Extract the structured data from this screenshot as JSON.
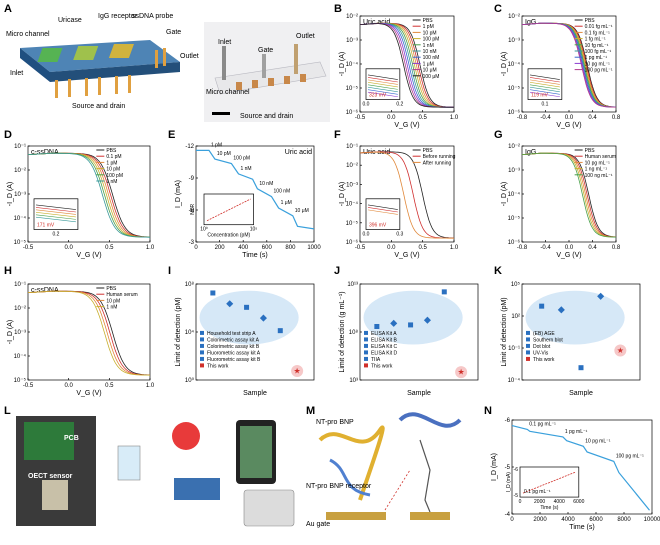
{
  "panel_letters": [
    "A",
    "B",
    "C",
    "D",
    "E",
    "F",
    "G",
    "H",
    "I",
    "J",
    "K",
    "L",
    "M",
    "N"
  ],
  "panelA": {
    "left": {
      "labels": [
        "Micro channel",
        "Uricase",
        "IgG receptor",
        "ssDNA probe",
        "Gate",
        "Inlet",
        "Outlet",
        "Source and drain"
      ]
    },
    "right": {
      "labels": [
        "Inlet",
        "Gate",
        "Outlet",
        "Micro channel",
        "Source and drain"
      ]
    }
  },
  "colors": {
    "accent": "#3aa0dc",
    "red": "#d0302a",
    "ellipse": "#d6e8f7",
    "series": [
      "#222222",
      "#d03030",
      "#e0883a",
      "#c8b030",
      "#49a04a",
      "#3a9a9a",
      "#3a6ad0",
      "#8a3ad0",
      "#b03a8a"
    ]
  },
  "chart_data": [
    {
      "id": "B",
      "type": "line",
      "title": "Uric acid",
      "xlabel": "V_G (V)",
      "ylabel": "-I_D (A)",
      "xlim": [
        -0.8,
        1.0
      ],
      "ylim_exp": [
        -6,
        -2
      ],
      "xticks": [
        "-0.5",
        "0.0",
        "0.5",
        "1.0"
      ],
      "yticks": [
        "10⁻²",
        "10⁻³",
        "10⁻⁴",
        "10⁻⁵",
        "10⁻⁶"
      ],
      "legend": [
        "PBS",
        "1 pM",
        "10 pM",
        "100 pM",
        "1 nM",
        "10 nM",
        "100 nM",
        "1 μM",
        "10 μM",
        "100 μM"
      ],
      "inset": {
        "annotation": "323 mV",
        "xticks": [
          "0.0",
          "0.2"
        ]
      },
      "series_count": 10,
      "vth_start": 0.35,
      "vth_step": -0.035
    },
    {
      "id": "C",
      "type": "line",
      "title": "IgG",
      "xlabel": "V_G (V)",
      "ylabel": "-I_D (A)",
      "xlim": [
        -0.8,
        1.0
      ],
      "ylim_exp": [
        -6,
        -2
      ],
      "xticks": [
        "-0.8",
        "-0.4",
        "0.0",
        "0.4",
        "0.8"
      ],
      "yticks": [
        "10⁻²",
        "10⁻³",
        "10⁻⁴",
        "10⁻⁵",
        "10⁻⁶"
      ],
      "legend": [
        "PBS",
        "0.01 fg mL⁻¹",
        "0.1 fg mL⁻¹",
        "1 fg mL⁻¹",
        "10 fg mL⁻¹",
        "100 fg mL⁻¹",
        "1 pg mL⁻¹",
        "10 pg mL⁻¹",
        "100 pg mL⁻¹"
      ],
      "inset": {
        "annotation": "119 mV",
        "xticks": [
          "0.1"
        ]
      },
      "series_count": 9,
      "vth_start": 0.45,
      "vth_step": -0.014
    },
    {
      "id": "D",
      "type": "line",
      "title": "c-ssDNA",
      "xlabel": "V_G (V)",
      "ylabel": "-I_D (A)",
      "xlim": [
        -0.8,
        1.0
      ],
      "ylim_exp": [
        -5,
        -1
      ],
      "xticks": [
        "-0.5",
        "0.0",
        "0.5",
        "1.0"
      ],
      "yticks": [
        "10⁻¹",
        "10⁻²",
        "10⁻³",
        "10⁻⁴",
        "10⁻⁵"
      ],
      "legend": [
        "PBS",
        "0.1 pM",
        "1 pM",
        "10 pM",
        "100 pM",
        "1 nM"
      ],
      "inset": {
        "annotation": "171 mV",
        "xticks": [
          "0.2"
        ]
      },
      "series_count": 6,
      "vth_start": 0.45,
      "vth_step": -0.03
    },
    {
      "id": "E",
      "type": "line",
      "title": "Uric acid",
      "xlabel": "Time (s)",
      "ylabel": "I_D (mA)",
      "xlim": [
        0,
        1000
      ],
      "ylim": [
        -13,
        -2
      ],
      "xticks": [
        "0",
        "200",
        "400",
        "600",
        "800",
        "1000"
      ],
      "yticks": [
        "-12",
        "-9",
        "-6",
        "-3"
      ],
      "step_labels": [
        "1 pM",
        "10 pM",
        "100 pM",
        "1 nM",
        "10 nM",
        "100 nM",
        "1 μM",
        "10 μM"
      ],
      "x": [
        0,
        110,
        160,
        300,
        360,
        480,
        520,
        640,
        700,
        820,
        860,
        1000
      ],
      "y": [
        -12.5,
        -12.5,
        -11.5,
        -11.0,
        -9.8,
        -9.2,
        -8.1,
        -7.2,
        -5.9,
        -5.0,
        -3.8,
        -3.5
      ],
      "inset": {
        "xlabel": "Concentration (pM)",
        "ylabel": "NCR",
        "xticks": [
          "10⁰",
          "10⁵"
        ]
      }
    },
    {
      "id": "F",
      "type": "line",
      "title": "Uric acid",
      "xlabel": "V_G (V)",
      "ylabel": "-I_D (A)",
      "xlim": [
        -0.8,
        1.0
      ],
      "ylim_exp": [
        -6,
        -1
      ],
      "xticks": [
        "-0.5",
        "0.0",
        "0.5",
        "1.0"
      ],
      "yticks": [
        "10⁻¹",
        "10⁻²",
        "10⁻³",
        "10⁻⁴",
        "10⁻⁵",
        "10⁻⁶"
      ],
      "legend": [
        "PBS",
        "Before running",
        "After running"
      ],
      "inset": {
        "annotation": "396 mV",
        "xticks": [
          "0.0",
          "0.3"
        ]
      },
      "series_count": 3,
      "vth_start": 0.4,
      "vth_step": -0.18
    },
    {
      "id": "G",
      "type": "line",
      "title": "IgG",
      "xlabel": "V_G (V)",
      "ylabel": "-I_D (A)",
      "xlim": [
        -0.8,
        1.0
      ],
      "ylim_exp": [
        -6,
        -2
      ],
      "xticks": [
        "-0.8",
        "-0.4",
        "0.0",
        "0.4",
        "0.8"
      ],
      "yticks": [
        "10⁻²",
        "10⁻³",
        "10⁻⁴",
        "10⁻⁵",
        "10⁻⁶"
      ],
      "legend": [
        "PBS",
        "Human serum",
        "10 pg mL⁻¹",
        "1 ng mL⁻¹",
        "100 ng mL⁻¹"
      ],
      "series_count": 5,
      "vth_start": 0.48,
      "vth_step": -0.03
    },
    {
      "id": "H",
      "type": "line",
      "title": "c-ssDNA",
      "xlabel": "V_G (V)",
      "ylabel": "-I_D (A)",
      "xlim": [
        -0.8,
        1.0
      ],
      "ylim_exp": [
        -5,
        -1
      ],
      "xticks": [
        "-0.5",
        "0.0",
        "0.5",
        "1.0"
      ],
      "yticks": [
        "10⁻¹",
        "10⁻²",
        "10⁻³",
        "10⁻⁴",
        "10⁻⁵"
      ],
      "legend": [
        "PBS",
        "Human serum",
        "10 pM",
        "1 nM"
      ],
      "series_count": 4,
      "vth_start": 0.45,
      "vth_step": -0.04
    },
    {
      "id": "I",
      "type": "scatter",
      "xlabel": "Sample",
      "ylabel": "Limit of detection (pM)",
      "yticks": [
        "10⁸",
        "10⁴",
        "10⁰"
      ],
      "legend": [
        "Household test strip A",
        "Colorimetric assay kit A",
        "Colorimetric assay kit B",
        "Fluorometric assay kit A",
        "Fluorometric assay kit B",
        "This work"
      ],
      "x": [
        1,
        2,
        3,
        4,
        5,
        6
      ],
      "y_log": [
        8.2,
        7.0,
        6.6,
        5.4,
        4.0,
        -0.5
      ]
    },
    {
      "id": "J",
      "type": "scatter",
      "xlabel": "Sample",
      "ylabel": "Limit of detection (g mL⁻¹)",
      "yticks": [
        "10¹³",
        "10⁸",
        "10³"
      ],
      "legend": [
        "ELISA Kit A",
        "ELISA Kit B",
        "ELISA Kit C",
        "ELISA Kit D",
        "TIIA",
        "This work"
      ],
      "x": [
        1,
        2,
        3,
        4,
        5,
        6
      ],
      "y_log": [
        6.8,
        7.2,
        7.0,
        7.6,
        11.2,
        1.0
      ]
    },
    {
      "id": "K",
      "type": "scatter",
      "xlabel": "Sample",
      "ylabel": "Limit of detection (pM)",
      "yticks": [
        "10⁵",
        "10²",
        "10⁻¹",
        "10⁻⁴"
      ],
      "legend": [
        "(EB) AGE",
        "Southern blot",
        "Dot blot",
        "UV-Vis",
        "This work"
      ],
      "x": [
        1,
        2,
        3,
        4,
        5
      ],
      "y_log": [
        2.4,
        2.1,
        -2.6,
        3.2,
        -1.2
      ]
    },
    {
      "id": "N",
      "type": "line",
      "xlabel": "Time (s)",
      "ylabel": "I_D (mA)",
      "xlim": [
        0,
        11000
      ],
      "ylim": [
        -6,
        -3.5
      ],
      "xticks": [
        "0",
        "2000",
        "4000",
        "6000",
        "8000",
        "10000"
      ],
      "yticks": [
        "-6",
        "-5",
        "-4"
      ],
      "step_labels": [
        "0.1 pg mL⁻¹",
        "1 pg mL⁻¹",
        "10 pg mL⁻¹",
        "100 pg mL⁻¹"
      ],
      "x": [
        0,
        1200,
        1400,
        4000,
        4300,
        5600,
        5900,
        8000,
        8400,
        10800
      ],
      "y": [
        -5.85,
        -5.75,
        -5.7,
        -5.55,
        -5.45,
        -5.3,
        -5.15,
        -4.9,
        -4.6,
        -3.6
      ],
      "inset": {
        "xlabel": "Time (s)",
        "ylabel": "I_D (mA)",
        "xticks": [
          "0",
          "2000",
          "4000",
          "6000"
        ],
        "yticks": [
          "-6",
          "-5"
        ],
        "annotation": "0.1 pg mL⁻¹"
      }
    }
  ],
  "panelL": {
    "labels": [
      "PCB",
      "OECT sensor"
    ]
  },
  "panelM": {
    "labels": [
      "NT-pro BNP",
      "NT-pro BNP receptor",
      "Au gate"
    ]
  }
}
